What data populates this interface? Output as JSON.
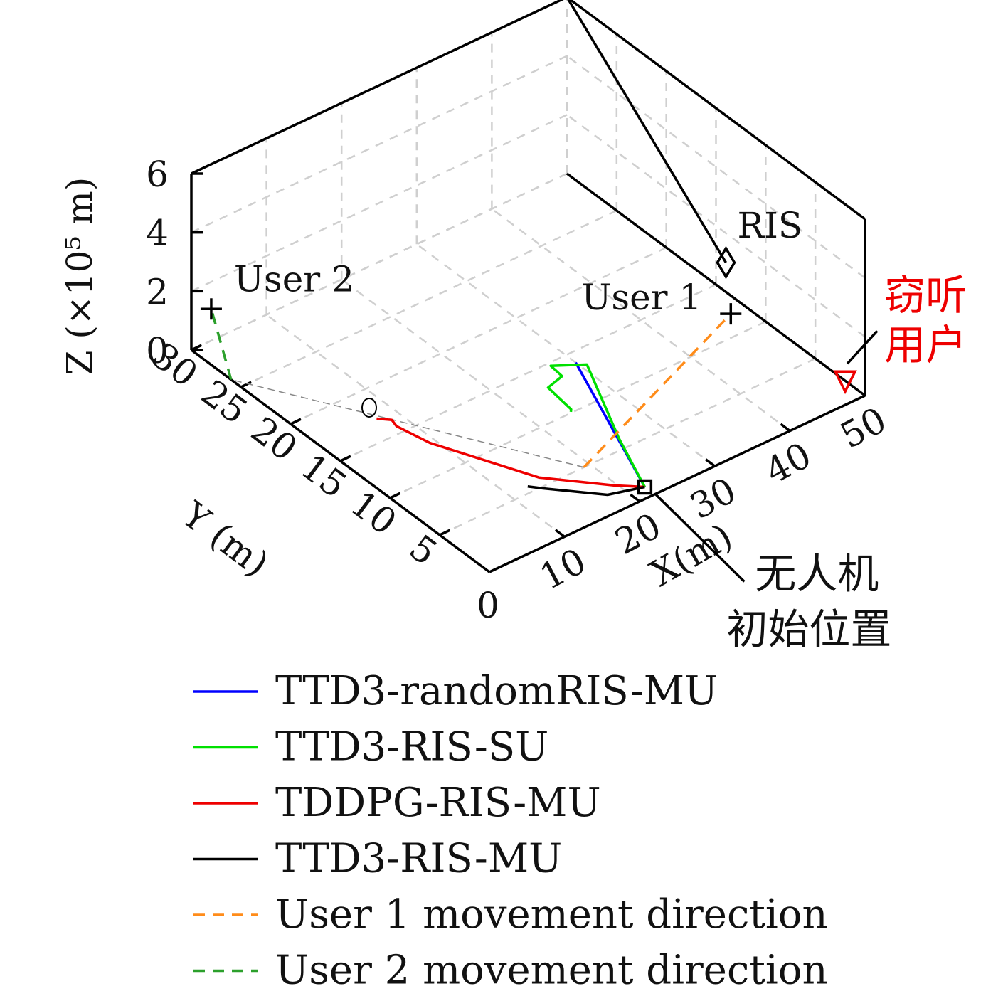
{
  "chart_data": {
    "type": "line",
    "projection": "3d",
    "grid": true,
    "legend_placement": "bottom",
    "xlabel": "X(m)",
    "ylabel": "Y (m)",
    "zlabel": "Z (×10⁵ m)",
    "xlim": [
      0,
      50
    ],
    "ylim": [
      0,
      30
    ],
    "zlim": [
      0,
      6
    ],
    "x_ticks": [
      "10",
      "20",
      "30",
      "40",
      "50"
    ],
    "y_ticks": [
      "5",
      "10",
      "15",
      "20",
      "25",
      "30"
    ],
    "z_ticks": [
      "0",
      "2",
      "4",
      "6"
    ],
    "origin_label": "0",
    "series": [
      {
        "name": "TTD3-randomRIS-MU",
        "color": "#0000ff",
        "style": "solid",
        "points": [
          [
            22.0,
            1.0,
            0
          ],
          [
            30.0,
            14.0,
            0
          ]
        ]
      },
      {
        "name": "TTD3-RIS-SU",
        "color": "#00e000",
        "style": "solid",
        "points": [
          [
            22.0,
            1.0,
            0
          ],
          [
            25.2,
            6.0,
            0
          ],
          [
            30.7,
            13.4,
            0
          ],
          [
            27.6,
            14.7,
            0
          ],
          [
            27.4,
            13.4,
            0
          ],
          [
            25.0,
            13.0,
            0
          ],
          [
            24.5,
            10.3,
            0
          ],
          [
            24.2,
            10.1,
            0
          ]
        ]
      },
      {
        "name": "TDDPG-RIS-MU",
        "color": "#ee0000",
        "style": "solid",
        "points": [
          [
            22.0,
            1.0,
            0
          ],
          [
            19.7,
            2.3,
            0
          ],
          [
            14.4,
            5.9,
            0
          ],
          [
            9.3,
            13.0,
            0
          ],
          [
            8.4,
            15.7,
            0
          ],
          [
            8.7,
            16.4,
            0
          ],
          [
            7.6,
            17.1,
            0
          ]
        ]
      },
      {
        "name": "TTD3-RIS-MU",
        "color": "#000000",
        "style": "solid",
        "points": [
          [
            22.0,
            1.0,
            0
          ],
          [
            18.1,
            1.8,
            0
          ],
          [
            13.6,
            4.8,
            0
          ],
          [
            12.5,
            5.6,
            0
          ]
        ]
      },
      {
        "name": "User 1 movement direction",
        "color": "#ff8c1a",
        "style": "dashed",
        "points": [
          [
            19.2,
            5.0,
            0
          ],
          [
            48.0,
            12.0,
            0
          ]
        ]
      },
      {
        "name": "User 2 movement direction",
        "color": "#2ca02c",
        "style": "dashed",
        "points": [
          [
            0,
            26.0,
            0
          ],
          [
            0,
            28.0,
            1.9
          ]
        ]
      }
    ],
    "reference_lines": [
      {
        "color": "#888888",
        "style": "dashed",
        "points": [
          [
            19.2,
            5.0,
            0
          ],
          [
            0,
            26.0,
            0
          ]
        ]
      },
      {
        "color": "#000000",
        "style": "solid",
        "points": [
          [
            50,
            30,
            6.0
          ],
          [
            50,
            14.0,
            1.0
          ]
        ]
      }
    ],
    "markers": [
      {
        "label": "User 1",
        "symbol": "plus",
        "color": "#000000",
        "point": [
          48.0,
          12.0,
          0
        ]
      },
      {
        "label": "User 2",
        "symbol": "plus",
        "color": "#000000",
        "point": [
          0,
          28.0,
          1.9
        ]
      },
      {
        "label": "RIS",
        "symbol": "diamond",
        "color": "#000000",
        "point": [
          50,
          14.0,
          1.0
        ]
      },
      {
        "label": "",
        "symbol": "circle",
        "color": "#000000",
        "point": [
          8.2,
          18.3,
          0
        ]
      },
      {
        "label": "窃听\n用户",
        "symbol": "triangle-down",
        "color": "#ee0000",
        "point": [
          50,
          2.0,
          0
        ]
      },
      {
        "label": "无人机\n初始位置",
        "symbol": "square",
        "color": "#000000",
        "point": [
          22.0,
          1.0,
          0
        ]
      }
    ],
    "annotations": [
      {
        "text": "User 2",
        "target": "User 2"
      },
      {
        "text": "RIS",
        "target": "RIS"
      },
      {
        "text": "User 1",
        "target": "User 1"
      },
      {
        "text": "窃听",
        "target": "eavesdropper",
        "color": "#ee0000"
      },
      {
        "text": "用户",
        "target": "eavesdropper",
        "color": "#ee0000"
      },
      {
        "text": "无人机",
        "target": "uav-start"
      },
      {
        "text": "初始位置",
        "target": "uav-start"
      }
    ]
  }
}
